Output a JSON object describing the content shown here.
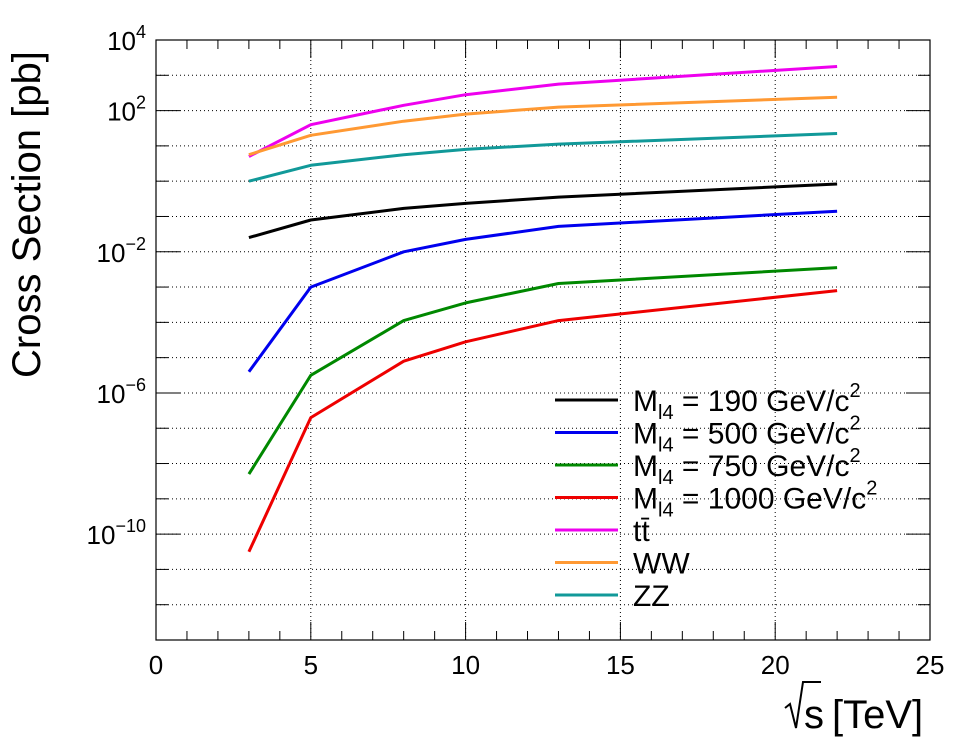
{
  "chart_data": {
    "type": "line",
    "xlabel": "√s [TeV]",
    "xlabel_symbol": "s",
    "xlabel_unit": "[TeV]",
    "ylabel": "Cross Section [pb]",
    "xlim": [
      0,
      25
    ],
    "ylim_log10": [
      -13,
      4
    ],
    "yscale": "log",
    "grid": true,
    "legend_position": "bottom-right",
    "x_ticks": [
      {
        "value": 0,
        "label": "0"
      },
      {
        "value": 5,
        "label": "5"
      },
      {
        "value": 10,
        "label": "10"
      },
      {
        "value": 15,
        "label": "15"
      },
      {
        "value": 20,
        "label": "20"
      },
      {
        "value": 25,
        "label": "25"
      }
    ],
    "y_ticks": [
      {
        "exp": 4,
        "base": "10",
        "sup": "4"
      },
      {
        "exp": 2,
        "base": "10",
        "sup": "2"
      },
      {
        "exp": -2,
        "base": "10",
        "sup": "−2"
      },
      {
        "exp": -6,
        "base": "10",
        "sup": "−6"
      },
      {
        "exp": -10,
        "base": "10",
        "sup": "−10"
      }
    ],
    "series": [
      {
        "name": "M_l4 = 190 GeV/c^2",
        "legend": {
          "main": "M",
          "sub": "l4",
          "rest": " = 190 GeV/c",
          "sup": "2"
        },
        "color": "#000000",
        "x": [
          3,
          5,
          8,
          10,
          13,
          22
        ],
        "log10_y": [
          -1.6,
          -1.1,
          -0.77,
          -0.63,
          -0.45,
          -0.08
        ]
      },
      {
        "name": "M_l4 = 500 GeV/c^2",
        "legend": {
          "main": "M",
          "sub": "l4",
          "rest": " = 500 GeV/c",
          "sup": "2"
        },
        "color": "#0000ee",
        "x": [
          3,
          5,
          8,
          10,
          13,
          22
        ],
        "log10_y": [
          -5.4,
          -3.0,
          -2.0,
          -1.65,
          -1.28,
          -0.85
        ]
      },
      {
        "name": "M_l4 = 750 GeV/c^2",
        "legend": {
          "main": "M",
          "sub": "l4",
          "rest": " = 750 GeV/c",
          "sup": "2"
        },
        "color": "#008800",
        "x": [
          3,
          5,
          8,
          10,
          13,
          22
        ],
        "log10_y": [
          -8.3,
          -5.5,
          -3.95,
          -3.45,
          -2.9,
          -2.45
        ]
      },
      {
        "name": "M_l4 = 1000 GeV/c^2",
        "legend": {
          "main": "M",
          "sub": "l4",
          "rest": " = 1000 GeV/c",
          "sup": "2"
        },
        "color": "#ee0000",
        "x": [
          3,
          5,
          8,
          10,
          13,
          22
        ],
        "log10_y": [
          -10.5,
          -6.7,
          -5.1,
          -4.55,
          -3.95,
          -3.1
        ]
      },
      {
        "name": "tt̄",
        "legend": {
          "main": "tt̄",
          "sub": "",
          "rest": "",
          "sup": ""
        },
        "color": "#ee00ee",
        "x": [
          3,
          5,
          8,
          10,
          13,
          22
        ],
        "log10_y": [
          0.7,
          1.6,
          2.15,
          2.45,
          2.75,
          3.25
        ]
      },
      {
        "name": "WW",
        "legend": {
          "main": "WW",
          "sub": "",
          "rest": "",
          "sup": ""
        },
        "color": "#ff9933",
        "x": [
          3,
          5,
          8,
          10,
          13,
          22
        ],
        "log10_y": [
          0.75,
          1.3,
          1.7,
          1.9,
          2.1,
          2.38
        ]
      },
      {
        "name": "ZZ",
        "legend": {
          "main": "ZZ",
          "sub": "",
          "rest": "",
          "sup": ""
        },
        "color": "#119999",
        "x": [
          3,
          5,
          8,
          10,
          13,
          22
        ],
        "log10_y": [
          0.0,
          0.45,
          0.75,
          0.9,
          1.05,
          1.35
        ]
      }
    ]
  }
}
